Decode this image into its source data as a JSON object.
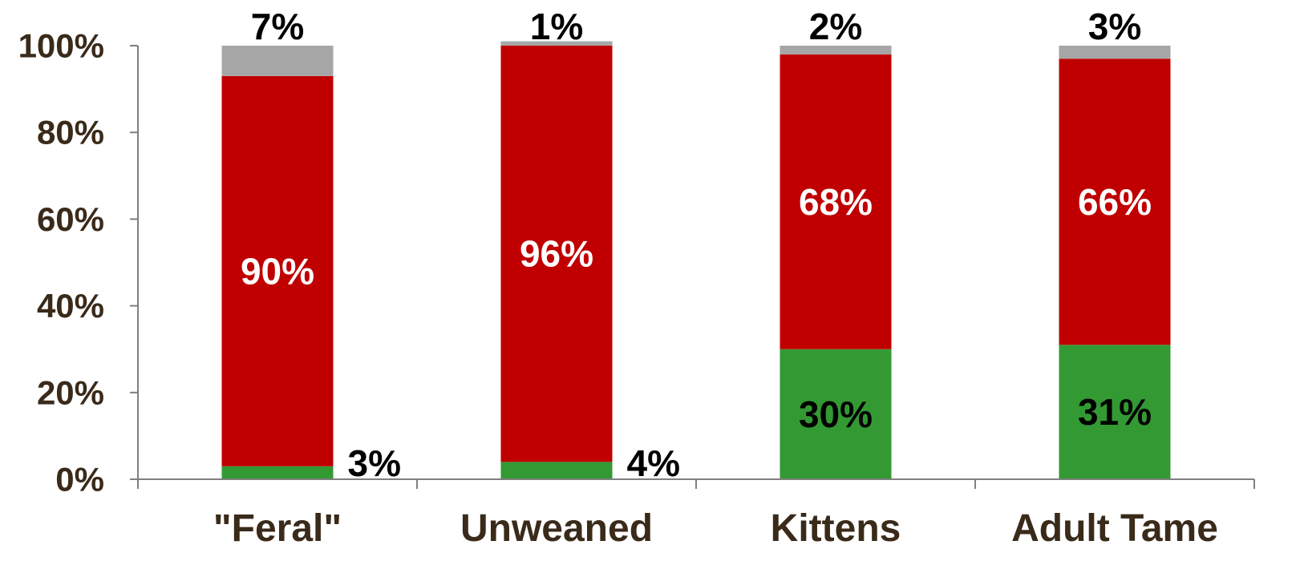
{
  "chart_data": {
    "type": "bar",
    "stacked": true,
    "categories": [
      "\"Feral\"",
      "Unweaned",
      "Kittens",
      "Adult Tame"
    ],
    "series": [
      {
        "values": [
          3,
          4,
          30,
          31
        ],
        "labels": [
          "3%",
          "4%",
          "30%",
          "31%"
        ],
        "color": "#339933",
        "label_color": "#000000"
      },
      {
        "values": [
          90,
          96,
          68,
          66
        ],
        "labels": [
          "90%",
          "96%",
          "68%",
          "66%"
        ],
        "color": "#c00000",
        "label_color": "#ffffff"
      },
      {
        "values": [
          7,
          1,
          2,
          3
        ],
        "labels": [
          "7%",
          "1%",
          "2%",
          "3%"
        ],
        "color": "#a6a6a6",
        "label_color": "#000000"
      }
    ],
    "ylim": [
      0,
      100
    ],
    "yticks": [
      0,
      20,
      40,
      60,
      80,
      100
    ],
    "ytick_labels": [
      "0%",
      "20%",
      "40%",
      "60%",
      "80%",
      "100%"
    ],
    "axis_text_color": "#3a2a1a",
    "grid": false,
    "legend": "none",
    "title": "",
    "xlabel": "",
    "ylabel": ""
  }
}
